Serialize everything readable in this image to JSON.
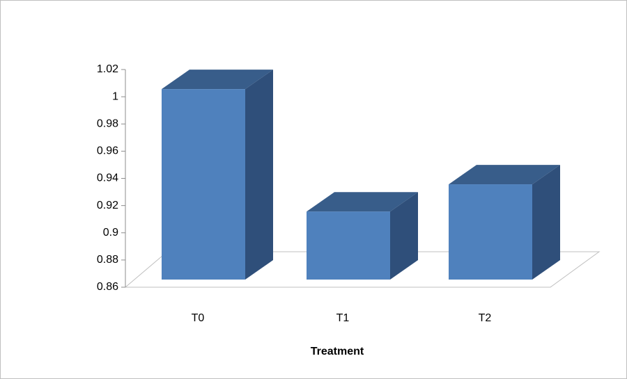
{
  "chart_data": {
    "type": "bar3d",
    "x_label": "Treatment",
    "categories": [
      "T0",
      "T1",
      "T2"
    ],
    "values": [
      1.0,
      0.91,
      0.93
    ],
    "color": "#4f81bd",
    "ylim": [
      0.86,
      1.02
    ],
    "yticks": [
      0.86,
      0.88,
      0.9,
      0.92,
      0.94,
      0.96,
      0.98,
      1,
      1.02
    ]
  }
}
